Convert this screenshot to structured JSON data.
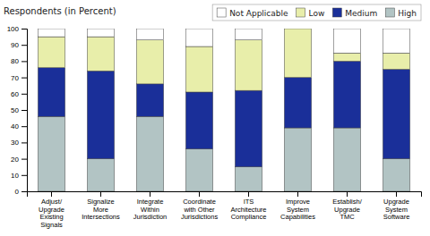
{
  "chart_data": {
    "type": "bar",
    "stacked": true,
    "ylabel": "Respondents (in Percent)",
    "categories": [
      "Adjust/\nUpgrade\nExisting\nSignals",
      "Signalize\nMore\nIntersections",
      "Integrate\nWithin\nJurisdiction",
      "Coordinate\nwith Other\nJurisdictions",
      "ITS\nArchitecture\nCompliance",
      "Improve\nSystem\nCapabilities",
      "Establish/\nUpgrade\nTMC",
      "Upgrade\nSystem\nSoftware"
    ],
    "series": [
      {
        "name": "High",
        "color": "#b2c4c4",
        "values": [
          46,
          20,
          46,
          26,
          15,
          39,
          39,
          20
        ]
      },
      {
        "name": "Medium",
        "color": "#1a2f99",
        "values": [
          30,
          54,
          20,
          35,
          47,
          31,
          41,
          55
        ]
      },
      {
        "name": "Low",
        "color": "#e8eeaa",
        "values": [
          19,
          21,
          27,
          28,
          31,
          30,
          5,
          10
        ]
      },
      {
        "name": "Not Applicable",
        "color": "#ffffff",
        "values": [
          5,
          5,
          7,
          11,
          7,
          0,
          15,
          15
        ]
      }
    ],
    "ylim": [
      0,
      100
    ],
    "yticks": [
      0,
      10,
      20,
      30,
      40,
      50,
      60,
      70,
      80,
      90,
      100
    ],
    "grid": false,
    "legend": "upper right"
  }
}
